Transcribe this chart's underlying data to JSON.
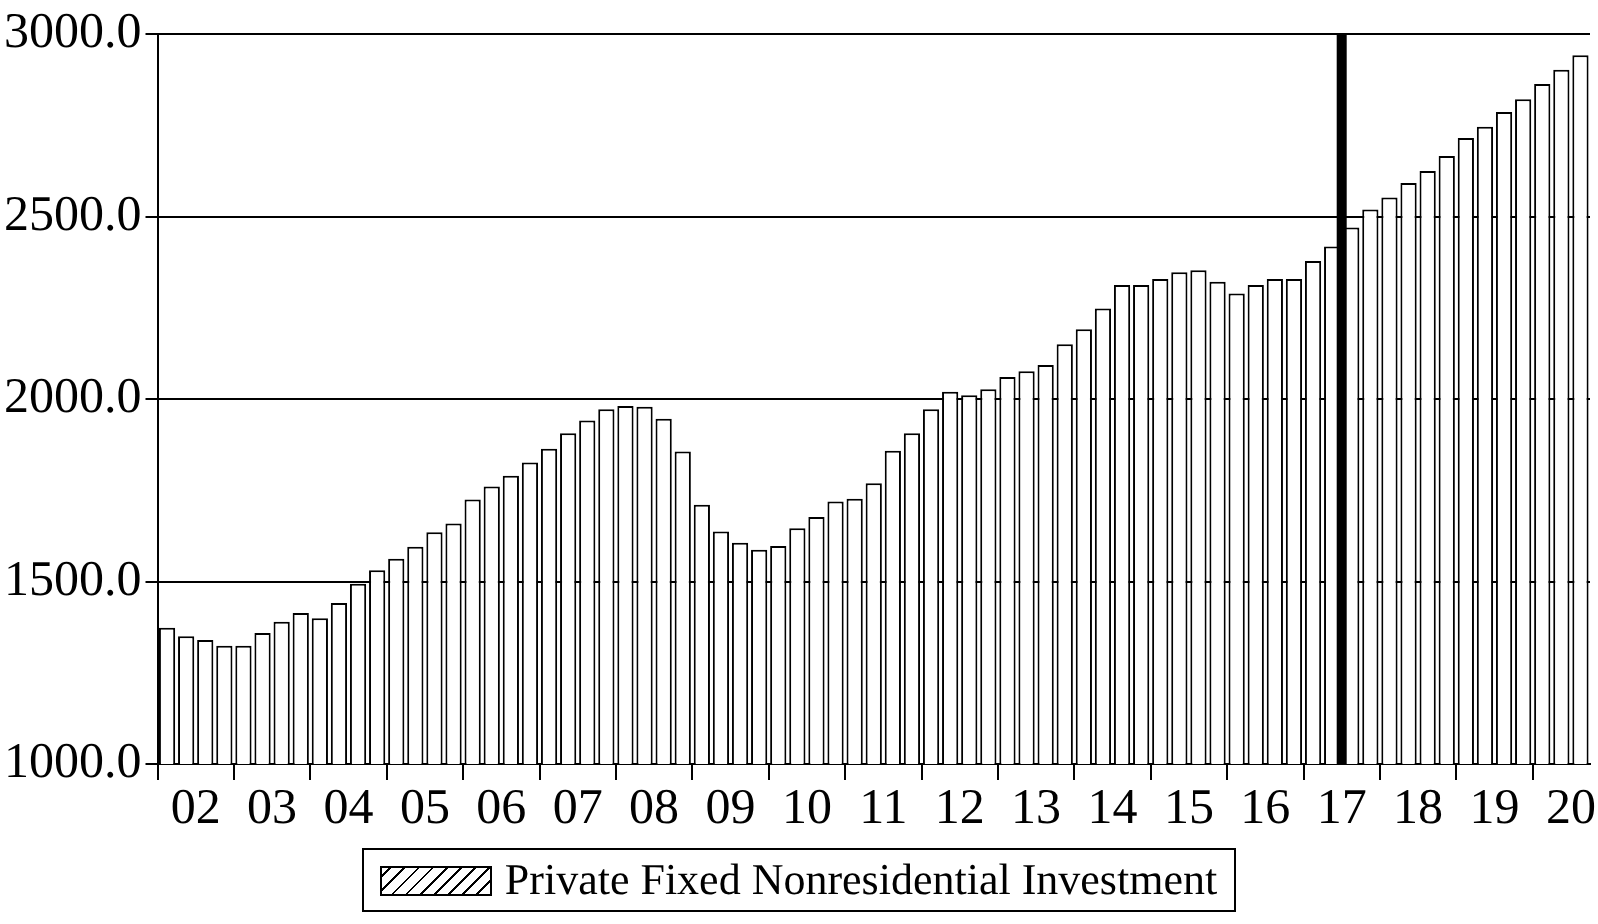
{
  "chart_data": {
    "type": "bar",
    "categories": [
      null,
      "02",
      null,
      null,
      null,
      "03",
      null,
      null,
      null,
      "04",
      null,
      null,
      null,
      "05",
      null,
      null,
      null,
      "06",
      null,
      null,
      null,
      "07",
      null,
      null,
      null,
      "08",
      null,
      null,
      null,
      "09",
      null,
      null,
      null,
      "10",
      null,
      null,
      null,
      "11",
      null,
      null,
      null,
      "12",
      null,
      null,
      null,
      "13",
      null,
      null,
      null,
      "14",
      null,
      null,
      null,
      "15",
      null,
      null,
      null,
      "16",
      null,
      null,
      null,
      "17",
      null,
      null,
      null,
      "18",
      null,
      null,
      null,
      "19",
      null,
      null,
      null,
      "20",
      null
    ],
    "series": [
      {
        "name": "Private Fixed Nonresidential Investment",
        "color": "#ffffff",
        "values": [
          1373,
          1350,
          1340,
          1324,
          1324,
          1359,
          1390,
          1414,
          1399,
          1441,
          1494,
          1531,
          1562,
          1595,
          1635,
          1659,
          1725,
          1760,
          1790,
          1826,
          1864,
          1906,
          1941,
          1972,
          1981,
          1979,
          1946,
          1856,
          1710,
          1637,
          1606,
          1587,
          1597,
          1646,
          1677,
          1719,
          1727,
          1769,
          1858,
          1906,
          1972,
          2020,
          2010,
          2027,
          2060,
          2076,
          2093,
          2150,
          2191,
          2248,
          2312,
          2312,
          2329,
          2347,
          2353,
          2321,
          2289,
          2312,
          2329,
          2329,
          2378,
          2418,
          2470,
          2519,
          2552,
          2592,
          2625,
          2666,
          2715,
          2746,
          2786,
          2821,
          2863,
          2902,
          2942
        ]
      }
    ],
    "ylim": [
      1000,
      3000
    ],
    "yticks": [
      {
        "value": 1000,
        "label": "1000.0"
      },
      {
        "value": 1500,
        "label": "1500.0"
      },
      {
        "value": 2000,
        "label": "2000.0"
      },
      {
        "value": 2500,
        "label": "2500.0"
      },
      {
        "value": 3000,
        "label": "3000.0"
      }
    ],
    "grid": "y",
    "legend": "bottom",
    "ref_lines": [
      {
        "axis": "x",
        "value": "17",
        "color": "#000000"
      }
    ]
  }
}
